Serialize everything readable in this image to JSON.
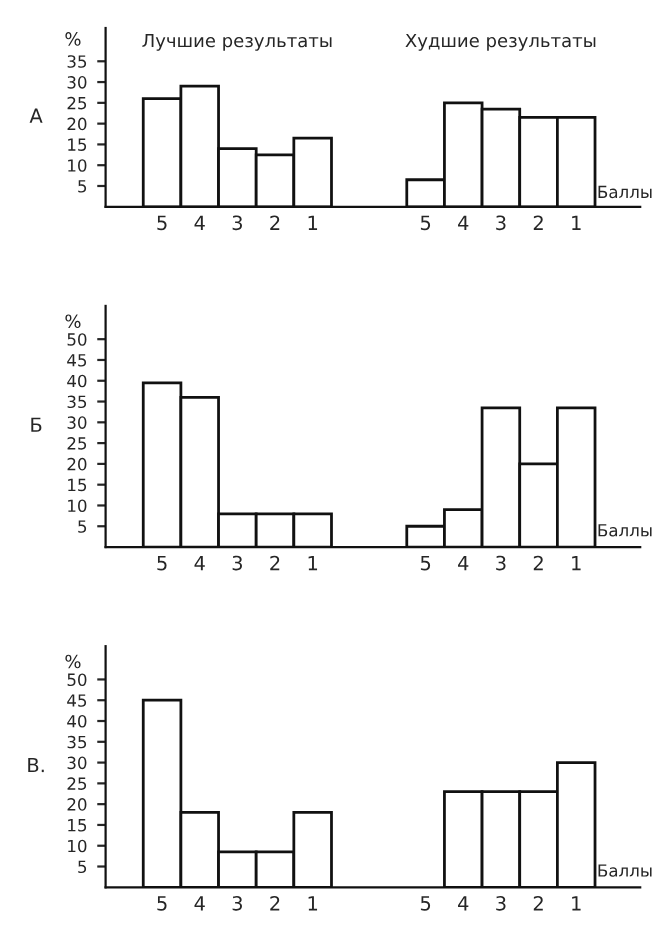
{
  "chart_data": [
    {
      "type": "bar",
      "ylabel": "%",
      "xlabel": "Баллы",
      "annotations": [
        "А",
        "Лучшие результаты",
        "Худшие результаты"
      ],
      "categories": [
        "5",
        "4",
        "3",
        "2",
        "1",
        null,
        null,
        "5",
        "4",
        "3",
        "2",
        "1"
      ],
      "series": [
        {
          "color": "#ffffff",
          "values": [
            26,
            29,
            14,
            12.5,
            16.5,
            null,
            null,
            6.5,
            25,
            23.5,
            21.5,
            21.5
          ]
        }
      ],
      "ylim": [
        0,
        43
      ],
      "yticks": [
        5,
        10,
        15,
        20,
        25,
        30,
        35
      ],
      "grid": false,
      "legend": false
    },
    {
      "type": "bar",
      "ylabel": "%",
      "xlabel": "Баллы",
      "annotations": [
        "Б"
      ],
      "categories": [
        "5",
        "4",
        "3",
        "2",
        "1",
        null,
        null,
        "5",
        "4",
        "3",
        "2",
        "1"
      ],
      "series": [
        {
          "color": "#ffffff",
          "values": [
            39.5,
            36,
            8,
            8,
            8,
            null,
            null,
            5,
            9,
            33.5,
            20,
            33.5
          ]
        }
      ],
      "ylim": [
        0,
        58
      ],
      "yticks": [
        5,
        10,
        15,
        20,
        25,
        30,
        35,
        40,
        45,
        50
      ],
      "grid": false,
      "legend": false
    },
    {
      "type": "bar",
      "ylabel": "%",
      "xlabel": "Баллы",
      "annotations": [
        "В."
      ],
      "categories": [
        "5",
        "4",
        "3",
        "2",
        "1",
        null,
        null,
        "5",
        "4",
        "3",
        "2",
        "1"
      ],
      "series": [
        {
          "color": "#ffffff",
          "values": [
            45,
            18,
            8.5,
            8.5,
            18,
            null,
            null,
            null,
            23,
            23,
            23,
            30
          ]
        }
      ],
      "ylim": [
        0,
        58
      ],
      "yticks": [
        5,
        10,
        15,
        20,
        25,
        30,
        35,
        40,
        45,
        50
      ],
      "grid": false,
      "legend": false
    }
  ]
}
